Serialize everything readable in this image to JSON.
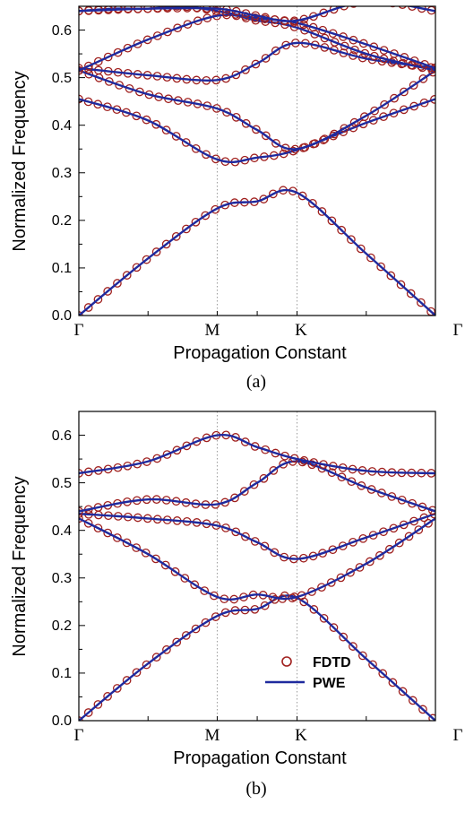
{
  "chart_data": [
    {
      "type": "line",
      "caption": "(a)",
      "xlabel": "Propagation Constant",
      "ylabel": "Normalized Frequency",
      "categories": [
        "Γ",
        "M",
        "K",
        "Γ"
      ],
      "category_positions": [
        0,
        1,
        1.577,
        2.577
      ],
      "ylim": [
        0,
        0.65
      ],
      "yticks": [
        "0.0",
        "0.1",
        "0.2",
        "0.3",
        "0.4",
        "0.5",
        "0.6"
      ],
      "xlim": [
        0,
        2.577
      ],
      "grid": "dotted vertical lines at M and K",
      "series": [
        {
          "style": "line",
          "x": [
            0,
            0.5,
            1,
            1.289,
            1.577,
            2.077,
            2.577
          ],
          "y": [
            0,
            0.12,
            0.225,
            0.24,
            0.258,
            0.13,
            0
          ]
        },
        {
          "style": "line",
          "x": [
            0,
            0.5,
            1,
            1.289,
            1.577,
            2.077,
            2.577
          ],
          "y": [
            0.455,
            0.41,
            0.328,
            0.332,
            0.348,
            0.405,
            0.455
          ]
        },
        {
          "style": "line",
          "x": [
            0,
            0.5,
            1,
            1.289,
            1.577,
            2.077,
            2.577
          ],
          "y": [
            0.515,
            0.465,
            0.435,
            0.39,
            0.35,
            0.42,
            0.515
          ]
        },
        {
          "style": "line",
          "x": [
            0,
            0.5,
            1,
            1.289,
            1.577,
            2.077,
            2.577
          ],
          "y": [
            0.52,
            0.505,
            0.495,
            0.53,
            0.573,
            0.54,
            0.52
          ]
        },
        {
          "style": "line",
          "x": [
            0,
            0.5,
            1,
            1.289,
            1.577,
            2.077,
            2.577
          ],
          "y": [
            0.515,
            0.58,
            0.63,
            0.62,
            0.605,
            0.55,
            0.515
          ]
        },
        {
          "style": "line",
          "x": [
            0,
            0.25,
            0.5,
            0.75,
            1,
            1.289,
            1.577,
            2.077,
            2.577
          ],
          "y": [
            0.64,
            0.645,
            0.645,
            0.65,
            0.64,
            0.625,
            0.615,
            0.57,
            0.52
          ]
        },
        {
          "style": "line",
          "x": [
            0,
            0.5,
            1,
            1.289,
            1.577,
            2.077,
            2.577
          ],
          "y": [
            0.64,
            0.645,
            0.645,
            0.63,
            0.62,
            0.66,
            0.64
          ]
        }
      ]
    },
    {
      "type": "line",
      "caption": "(b)",
      "xlabel": "Propagation Constant",
      "ylabel": "Normalized Frequency",
      "categories": [
        "Γ",
        "M",
        "K",
        "Γ"
      ],
      "category_positions": [
        0,
        1,
        1.577,
        2.577
      ],
      "ylim": [
        0,
        0.65
      ],
      "yticks": [
        "0.0",
        "0.1",
        "0.2",
        "0.3",
        "0.4",
        "0.5",
        "0.6"
      ],
      "xlim": [
        0,
        2.577
      ],
      "grid": "dotted vertical lines at M and K",
      "legend": {
        "position": "lower-center",
        "entries": [
          "FDTD",
          "PWE"
        ]
      },
      "series": [
        {
          "style": "line",
          "x": [
            0,
            0.5,
            1,
            1.289,
            1.577,
            2.077,
            2.577
          ],
          "y": [
            0,
            0.12,
            0.22,
            0.235,
            0.258,
            0.13,
            0
          ]
        },
        {
          "style": "line",
          "x": [
            0,
            0.5,
            1,
            1.289,
            1.577,
            2.077,
            2.577
          ],
          "y": [
            0.425,
            0.35,
            0.26,
            0.265,
            0.26,
            0.33,
            0.425
          ]
        },
        {
          "style": "line",
          "x": [
            0,
            0.5,
            1,
            1.289,
            1.577,
            2.077,
            2.577
          ],
          "y": [
            0.435,
            0.425,
            0.41,
            0.375,
            0.34,
            0.385,
            0.435
          ]
        },
        {
          "style": "line",
          "x": [
            0,
            0.5,
            1,
            1.289,
            1.577,
            2.077,
            2.577
          ],
          "y": [
            0.44,
            0.465,
            0.455,
            0.5,
            0.545,
            0.49,
            0.44
          ]
        },
        {
          "style": "line",
          "x": [
            0,
            0.5,
            1,
            1.289,
            1.577,
            2.077,
            2.577
          ],
          "y": [
            0.52,
            0.545,
            0.6,
            0.575,
            0.55,
            0.525,
            0.52
          ]
        }
      ]
    }
  ],
  "legend": {
    "circle_label": "FDTD",
    "line_label": "PWE"
  },
  "colors": {
    "line": "#1f2a9e",
    "marker": "#a0201e",
    "grid": "#9a9a9a"
  }
}
